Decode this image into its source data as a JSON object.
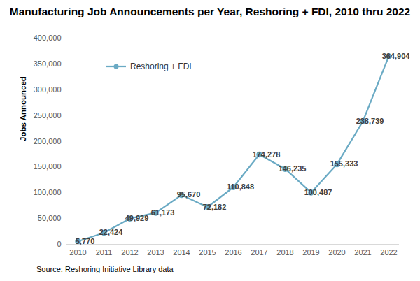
{
  "chart_data": {
    "type": "line",
    "title": "Manufacturing Job Announcements per Year, Reshoring + FDI, 2010 thru 2022",
    "y_label": "Jobs Announced",
    "caption": "Source: Reshoring Initiative Library data",
    "categories": [
      "2010",
      "2011",
      "2012",
      "2013",
      "2014",
      "2015",
      "2016",
      "2017",
      "2018",
      "2019",
      "2020",
      "2021",
      "2022"
    ],
    "series": [
      {
        "name": "Reshoring + FDI",
        "color": "#6aaac4",
        "marker": "circle",
        "values": [
          5770,
          22424,
          49929,
          61173,
          95670,
          72182,
          110848,
          174278,
          146235,
          100487,
          155333,
          238739,
          364904
        ],
        "value_labels": [
          "5,770",
          "22,424",
          "49,929",
          "61,173",
          "95,670",
          "72,182",
          "110,848",
          "174,278",
          "146,235",
          "100,487",
          "155,333",
          "238,739",
          "364,904"
        ]
      }
    ],
    "ylim": [
      0,
      400000
    ],
    "yticks": [
      0,
      {
        "value": 50000,
        "label": "50,000"
      },
      {
        "value": 100000,
        "label": "100,000"
      },
      {
        "value": 150000,
        "label": "150,000"
      },
      {
        "value": 200000,
        "label": "200,000"
      },
      {
        "value": 250000,
        "label": "250,000"
      },
      {
        "value": 300000,
        "label": "300,000"
      },
      {
        "value": 350000,
        "label": "350,000"
      },
      {
        "value": 400000,
        "label": "400,000"
      }
    ],
    "grid": false,
    "legend": "top-left",
    "data_labels": true
  }
}
